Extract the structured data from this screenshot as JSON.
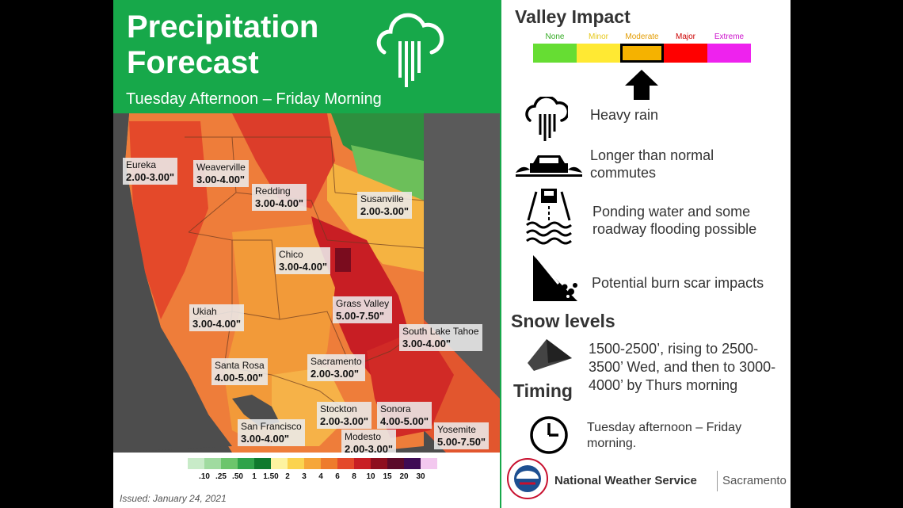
{
  "header": {
    "title": "Precipitation\nForecast",
    "subtitle": "Tuesday Afternoon – Friday Morning",
    "icon": "rain-cloud-icon"
  },
  "cities": [
    {
      "name": "Eureka",
      "range": "2.00-3.00\""
    },
    {
      "name": "Weaverville",
      "range": "3.00-4.00\""
    },
    {
      "name": "Redding",
      "range": "3.00-4.00\""
    },
    {
      "name": "Susanville",
      "range": "2.00-3.00\""
    },
    {
      "name": "Chico",
      "range": "3.00-4.00\""
    },
    {
      "name": "Grass Valley",
      "range": "5.00-7.50\""
    },
    {
      "name": "Ukiah",
      "range": "3.00-4.00\""
    },
    {
      "name": "South Lake Tahoe",
      "range": "3.00-4.00\""
    },
    {
      "name": "Santa Rosa",
      "range": "4.00-5.00\""
    },
    {
      "name": "Sacramento",
      "range": "2.00-3.00\""
    },
    {
      "name": "Stockton",
      "range": "2.00-3.00\""
    },
    {
      "name": "Sonora",
      "range": "4.00-5.00\""
    },
    {
      "name": "San Francisco",
      "range": "3.00-4.00\""
    },
    {
      "name": "Modesto",
      "range": "2.00-3.00\""
    },
    {
      "name": "Yosemite",
      "range": "5.00-7.50\""
    }
  ],
  "legend": {
    "ticks": [
      ".10",
      ".25",
      ".50",
      "1",
      "1.50",
      "2",
      "3",
      "4",
      "6",
      "8",
      "10",
      "15",
      "20",
      "30"
    ],
    "colors": [
      "#c8ebc8",
      "#a0dba0",
      "#6cc56c",
      "#2fa34a",
      "#0f7a2e",
      "#fdf3a0",
      "#fbd34f",
      "#f6a638",
      "#ee7b2c",
      "#e4492a",
      "#c81e24",
      "#8e0f1f",
      "#5b0a2a",
      "#3e0b54",
      "#f3c8ef"
    ]
  },
  "issued": "Issued: January 24, 2021",
  "valley_impact": {
    "title": "Valley Impact",
    "levels": [
      {
        "label": "None",
        "color": "#66dd33",
        "label_color": "#33aa22"
      },
      {
        "label": "Minor",
        "color": "#ffe933",
        "label_color": "#e6c81a"
      },
      {
        "label": "Moderate",
        "color": "#f5b200",
        "label_color": "#e39c00"
      },
      {
        "label": "Major",
        "color": "#ff0000",
        "label_color": "#cc0000"
      },
      {
        "label": "Extreme",
        "color": "#ee22ee",
        "label_color": "#cc11cc"
      }
    ],
    "selected": "Moderate"
  },
  "impacts": [
    {
      "icon": "heavy-rain-icon",
      "text": "Heavy rain"
    },
    {
      "icon": "car-spray-icon",
      "text": "Longer than normal\ncommutes"
    },
    {
      "icon": "flooded-road-icon",
      "text": "Ponding water and some\nroadway flooding possible"
    },
    {
      "icon": "landslide-icon",
      "text": "Potential burn scar impacts"
    }
  ],
  "snow": {
    "title": "Snow levels",
    "icon": "mountain-icon",
    "text": "1500-2500’, rising to 2500-\n3500’ Wed, and then to 3000-\n4000’ by Thurs morning"
  },
  "timing": {
    "title": "Timing",
    "icon": "clock-icon",
    "text": "Tuesday afternoon – Friday\nmorning."
  },
  "footer": {
    "org": "National Weather Service",
    "office": "Sacramento",
    "logo": "nws-logo-icon"
  }
}
